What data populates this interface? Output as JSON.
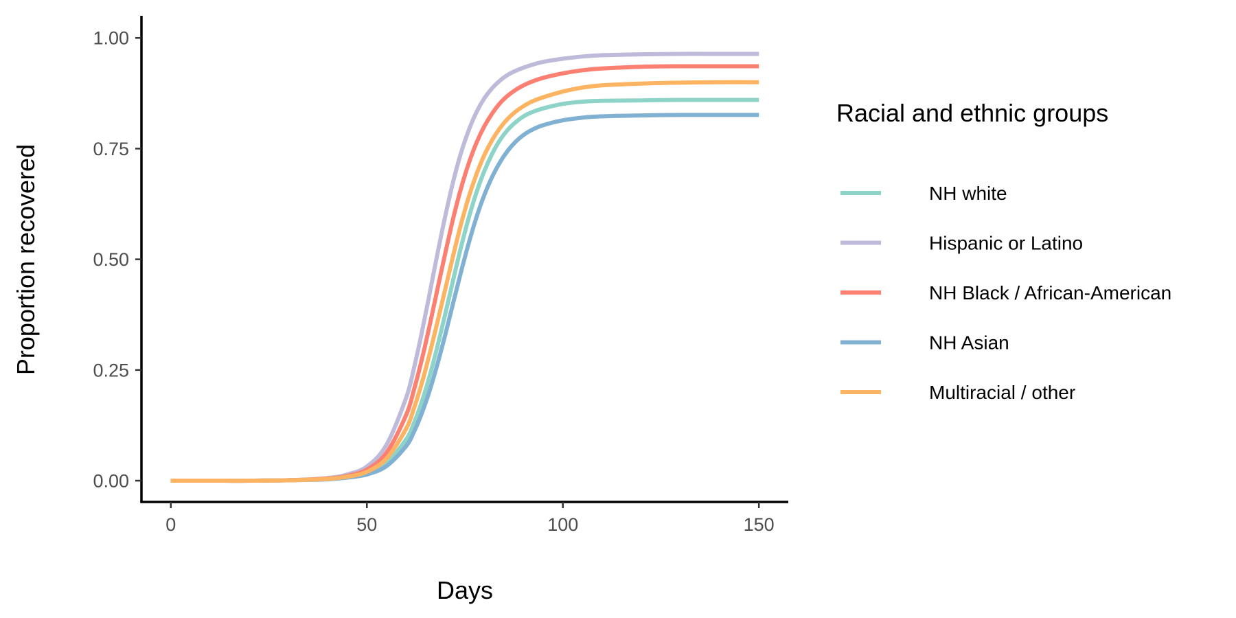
{
  "chart_data": {
    "type": "line",
    "xlabel": "Days",
    "ylabel": "Proportion recovered",
    "xlim": [
      -7.5,
      157.5
    ],
    "ylim": [
      -0.048,
      1.05
    ],
    "x_ticks": [
      0,
      50,
      100,
      150
    ],
    "x_tick_labels": [
      "0",
      "50",
      "100",
      "150"
    ],
    "y_ticks": [
      0,
      0.25,
      0.5,
      0.75,
      1.0
    ],
    "y_tick_labels": [
      "0.00",
      "0.25",
      "0.50",
      "0.75",
      "1.00"
    ],
    "grid": false,
    "legend": {
      "title": "Racial and ethnic groups",
      "placement": "right"
    },
    "x": [
      0,
      10,
      20,
      30,
      40,
      45,
      50,
      55,
      60,
      62,
      64,
      66,
      68,
      70,
      72,
      74,
      76,
      78,
      80,
      82,
      84,
      86,
      88,
      90,
      92,
      95,
      100,
      105,
      110,
      120,
      130,
      140,
      150
    ],
    "series": [
      {
        "name": "NH white",
        "color": "#8dd3c7",
        "values": [
          0,
          0,
          0,
          0.001,
          0.004,
          0.008,
          0.017,
          0.04,
          0.093,
          0.13,
          0.178,
          0.236,
          0.303,
          0.377,
          0.453,
          0.527,
          0.594,
          0.652,
          0.7,
          0.739,
          0.77,
          0.793,
          0.81,
          0.823,
          0.832,
          0.841,
          0.851,
          0.856,
          0.858,
          0.859,
          0.86,
          0.86,
          0.86
        ]
      },
      {
        "name": "Hispanic or Latino",
        "color": "#bebada",
        "values": [
          0,
          0,
          0,
          0.001,
          0.006,
          0.014,
          0.032,
          0.081,
          0.187,
          0.254,
          0.334,
          0.422,
          0.512,
          0.598,
          0.675,
          0.74,
          0.792,
          0.833,
          0.864,
          0.887,
          0.904,
          0.917,
          0.926,
          0.933,
          0.939,
          0.946,
          0.953,
          0.958,
          0.961,
          0.963,
          0.964,
          0.964,
          0.964
        ]
      },
      {
        "name": "NH Black / African-American",
        "color": "#fb8072",
        "values": [
          0,
          0,
          0,
          0.001,
          0.005,
          0.011,
          0.025,
          0.063,
          0.148,
          0.205,
          0.273,
          0.35,
          0.432,
          0.514,
          0.592,
          0.66,
          0.717,
          0.764,
          0.801,
          0.83,
          0.853,
          0.87,
          0.883,
          0.893,
          0.901,
          0.91,
          0.92,
          0.927,
          0.931,
          0.935,
          0.936,
          0.936,
          0.936
        ]
      },
      {
        "name": "NH Asian",
        "color": "#80b1d3",
        "values": [
          0,
          0,
          0,
          0.001,
          0.003,
          0.007,
          0.014,
          0.033,
          0.078,
          0.11,
          0.152,
          0.203,
          0.263,
          0.33,
          0.401,
          0.471,
          0.537,
          0.596,
          0.646,
          0.687,
          0.72,
          0.746,
          0.766,
          0.781,
          0.792,
          0.803,
          0.814,
          0.82,
          0.823,
          0.825,
          0.826,
          0.826,
          0.826
        ]
      },
      {
        "name": "Multiracial / other",
        "color": "#fdb462",
        "values": [
          0,
          0,
          0,
          0.001,
          0.004,
          0.009,
          0.02,
          0.05,
          0.117,
          0.163,
          0.22,
          0.286,
          0.358,
          0.433,
          0.508,
          0.579,
          0.641,
          0.693,
          0.736,
          0.77,
          0.797,
          0.818,
          0.834,
          0.846,
          0.856,
          0.866,
          0.879,
          0.888,
          0.893,
          0.897,
          0.899,
          0.9,
          0.9
        ]
      }
    ]
  }
}
